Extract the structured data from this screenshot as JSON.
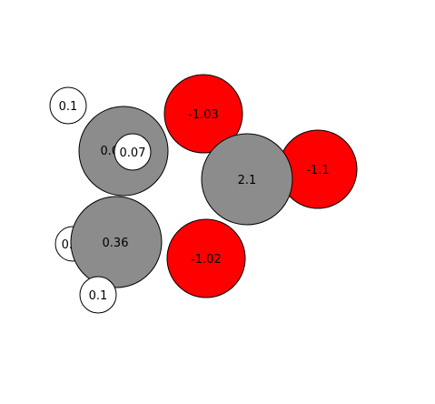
{
  "atoms": [
    {
      "id": "h-top-left",
      "charge_label": "0.1",
      "element": "hydrogen",
      "fill": "#ffffff"
    },
    {
      "id": "c-upper",
      "charge_label": "0.07",
      "element": "carbon",
      "fill": "#8c8c8c"
    },
    {
      "id": "h-on-c-upper",
      "charge_label": "0.07",
      "element": "hydrogen",
      "fill": "#ffffff"
    },
    {
      "id": "o-top",
      "charge_label": "-1.03",
      "element": "oxygen",
      "fill": "#ff0000"
    },
    {
      "id": "o-right",
      "charge_label": "-1.1",
      "element": "oxygen",
      "fill": "#ff0000"
    },
    {
      "id": "center-atom",
      "charge_label": "2.1",
      "element": "central",
      "fill": "#8c8c8c"
    },
    {
      "id": "h-left",
      "charge_label": "0.1",
      "element": "hydrogen",
      "fill": "#ffffff"
    },
    {
      "id": "c-lower",
      "charge_label": "0.36",
      "element": "carbon",
      "fill": "#8c8c8c"
    },
    {
      "id": "o-bottom",
      "charge_label": "-1.02",
      "element": "oxygen",
      "fill": "#ff0000"
    },
    {
      "id": "h-bottom",
      "charge_label": "0.1",
      "element": "hydrogen",
      "fill": "#ffffff"
    }
  ]
}
